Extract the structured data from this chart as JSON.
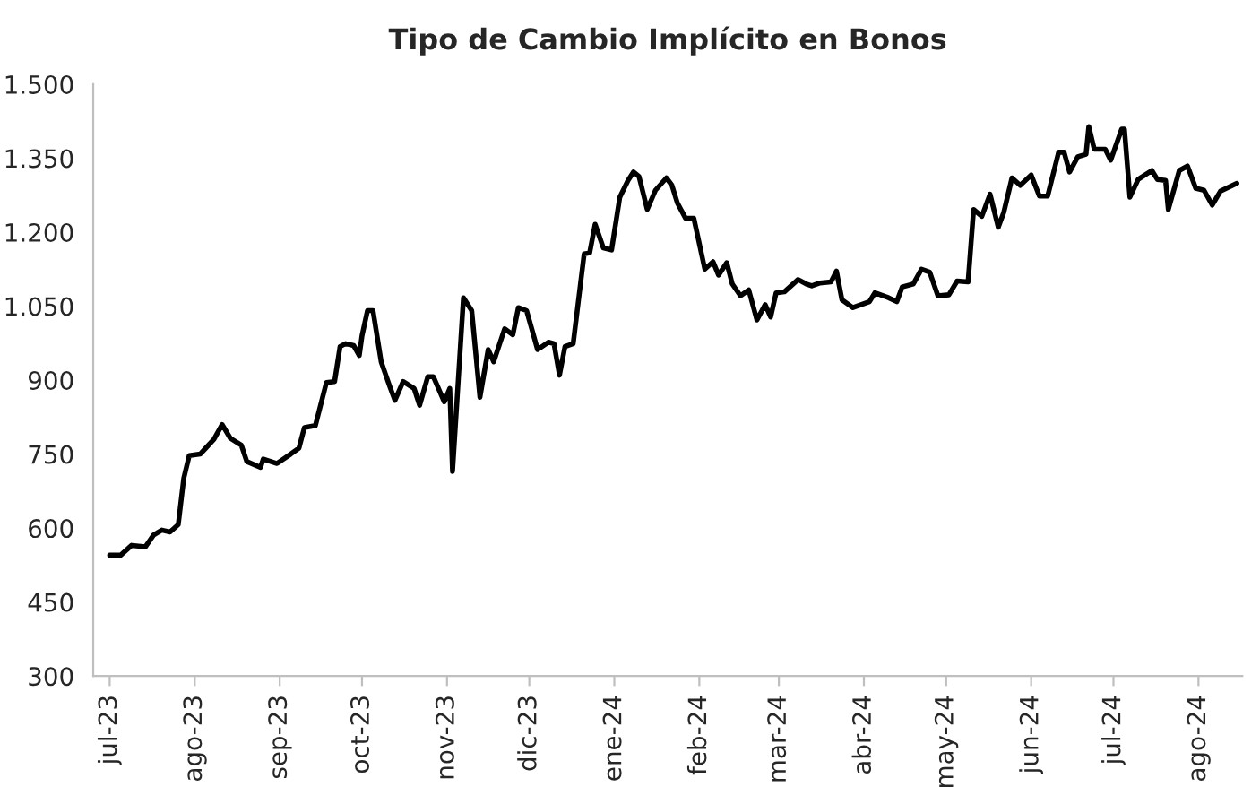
{
  "chart_data": {
    "type": "line",
    "title": "Tipo de Cambio Implícito en Bonos",
    "x": [
      "2023-07-01",
      "2023-07-05",
      "2023-07-09",
      "2023-07-14",
      "2023-07-17",
      "2023-07-20",
      "2023-07-23",
      "2023-07-26",
      "2023-07-28",
      "2023-07-30",
      "2023-08-03",
      "2023-08-05",
      "2023-08-08",
      "2023-08-11",
      "2023-08-14",
      "2023-08-18",
      "2023-08-20",
      "2023-08-25",
      "2023-08-26",
      "2023-08-31",
      "2023-09-05",
      "2023-09-08",
      "2023-09-10",
      "2023-09-14",
      "2023-09-18",
      "2023-09-21",
      "2023-09-23",
      "2023-09-25",
      "2023-09-28",
      "2023-09-30",
      "2023-10-01",
      "2023-10-03",
      "2023-10-05",
      "2023-10-08",
      "2023-10-11",
      "2023-10-13",
      "2023-10-16",
      "2023-10-20",
      "2023-10-22",
      "2023-10-25",
      "2023-10-27",
      "2023-10-31",
      "2023-11-02",
      "2023-11-03",
      "2023-11-07",
      "2023-11-10",
      "2023-11-13",
      "2023-11-16",
      "2023-11-18",
      "2023-11-22",
      "2023-11-25",
      "2023-11-27",
      "2023-11-30",
      "2023-12-02",
      "2023-12-04",
      "2023-12-08",
      "2023-12-10",
      "2023-12-12",
      "2023-12-14",
      "2023-12-17",
      "2023-12-21",
      "2023-12-23",
      "2023-12-25",
      "2023-12-28",
      "2023-12-31",
      "2024-01-03",
      "2024-01-06",
      "2024-01-08",
      "2024-01-10",
      "2024-01-13",
      "2024-01-16",
      "2024-01-20",
      "2024-01-22",
      "2024-01-24",
      "2024-01-27",
      "2024-01-30",
      "2024-02-03",
      "2024-02-06",
      "2024-02-08",
      "2024-02-11",
      "2024-02-13",
      "2024-02-16",
      "2024-02-19",
      "2024-02-22",
      "2024-02-25",
      "2024-02-27",
      "2024-02-29",
      "2024-03-03",
      "2024-03-08",
      "2024-03-11",
      "2024-03-13",
      "2024-03-16",
      "2024-03-20",
      "2024-03-22",
      "2024-03-24",
      "2024-03-28",
      "2024-04-03",
      "2024-04-05",
      "2024-04-10",
      "2024-04-13",
      "2024-04-15",
      "2024-04-19",
      "2024-04-22",
      "2024-04-25",
      "2024-04-28",
      "2024-05-02",
      "2024-05-05",
      "2024-05-09",
      "2024-05-11",
      "2024-05-14",
      "2024-05-17",
      "2024-05-20",
      "2024-05-22",
      "2024-05-25",
      "2024-05-28",
      "2024-06-01",
      "2024-06-04",
      "2024-06-07",
      "2024-06-11",
      "2024-06-13",
      "2024-06-15",
      "2024-06-18",
      "2024-06-21",
      "2024-06-22",
      "2024-06-24",
      "2024-06-28",
      "2024-06-30",
      "2024-07-04",
      "2024-07-05",
      "2024-07-07",
      "2024-07-10",
      "2024-07-15",
      "2024-07-17",
      "2024-07-20",
      "2024-07-21",
      "2024-07-25",
      "2024-07-28",
      "2024-07-31",
      "2024-08-03",
      "2024-08-06",
      "2024-08-09",
      "2024-08-15"
    ],
    "series": [
      {
        "color": "#000000",
        "values": [
          545,
          545,
          565,
          562,
          586,
          596,
          592,
          607,
          701,
          747,
          750,
          762,
          780,
          810,
          782,
          768,
          735,
          723,
          740,
          731,
          750,
          762,
          804,
          808,
          895,
          897,
          968,
          974,
          970,
          950,
          990,
          1041,
          1041,
          937,
          889,
          859,
          897,
          883,
          849,
          907,
          907,
          856,
          883,
          715,
          1067,
          1041,
          865,
          962,
          937,
          1004,
          992,
          1047,
          1041,
          1002,
          962,
          977,
          974,
          910,
          968,
          974,
          1156,
          1158,
          1216,
          1168,
          1164,
          1271,
          1305,
          1322,
          1313,
          1246,
          1285,
          1310,
          1295,
          1259,
          1228,
          1228,
          1125,
          1140,
          1113,
          1138,
          1095,
          1071,
          1083,
          1022,
          1053,
          1028,
          1077,
          1079,
          1104,
          1095,
          1091,
          1097,
          1099,
          1121,
          1063,
          1047,
          1059,
          1077,
          1067,
          1059,
          1089,
          1095,
          1125,
          1119,
          1071,
          1073,
          1101,
          1099,
          1246,
          1232,
          1277,
          1210,
          1240,
          1310,
          1295,
          1316,
          1273,
          1273,
          1362,
          1362,
          1322,
          1353,
          1358,
          1414,
          1368,
          1368,
          1346,
          1409,
          1409,
          1271,
          1307,
          1325,
          1307,
          1305,
          1246,
          1325,
          1334,
          1289,
          1285,
          1255,
          1283,
          1299
        ]
      }
    ],
    "xlim": [
      "2023-06-25",
      "2024-08-17"
    ],
    "xticks": [
      {
        "value": "2023-07-01",
        "label": "jul-23"
      },
      {
        "value": "2023-08-01",
        "label": "ago-23"
      },
      {
        "value": "2023-09-01",
        "label": "sep-23"
      },
      {
        "value": "2023-10-01",
        "label": "oct-23"
      },
      {
        "value": "2023-11-01",
        "label": "nov-23"
      },
      {
        "value": "2023-12-01",
        "label": "dic-23"
      },
      {
        "value": "2024-01-01",
        "label": "ene-24"
      },
      {
        "value": "2024-02-01",
        "label": "feb-24"
      },
      {
        "value": "2024-03-01",
        "label": "mar-24"
      },
      {
        "value": "2024-04-01",
        "label": "abr-24"
      },
      {
        "value": "2024-05-01",
        "label": "may-24"
      },
      {
        "value": "2024-06-01",
        "label": "jun-24"
      },
      {
        "value": "2024-07-01",
        "label": "jul-24"
      },
      {
        "value": "2024-08-01",
        "label": "ago-24"
      }
    ],
    "ylim": [
      300,
      1500
    ],
    "yticks": [
      {
        "value": 300,
        "label": "300"
      },
      {
        "value": 450,
        "label": "450"
      },
      {
        "value": 600,
        "label": "600"
      },
      {
        "value": 750,
        "label": "750"
      },
      {
        "value": 900,
        "label": "900"
      },
      {
        "value": 1050,
        "label": "1.050"
      },
      {
        "value": 1200,
        "label": "1.200"
      },
      {
        "value": 1350,
        "label": "1.350"
      },
      {
        "value": 1500,
        "label": "1.500"
      }
    ],
    "grid": false,
    "legend": false,
    "marker": "none",
    "line_style": "solid"
  }
}
